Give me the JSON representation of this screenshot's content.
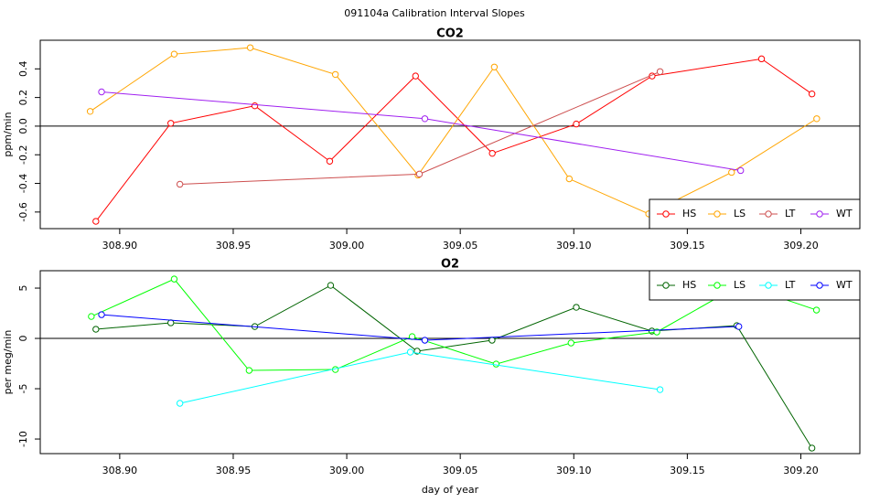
{
  "title": "091104a   Calibration Interval Slopes",
  "chart_data": [
    {
      "type": "line",
      "title": "CO2",
      "y_label": "ppm/min",
      "xlim": [
        308.865,
        309.226
      ],
      "ylim": [
        -0.716,
        0.6
      ],
      "xticks": [
        {
          "value": 308.9,
          "label": "308.90"
        },
        {
          "value": 308.95,
          "label": "308.95"
        },
        {
          "value": 309.0,
          "label": "309.00"
        },
        {
          "value": 309.05,
          "label": "309.05"
        },
        {
          "value": 309.1,
          "label": "309.10"
        },
        {
          "value": 309.15,
          "label": "309.15"
        },
        {
          "value": 309.2,
          "label": "309.20"
        }
      ],
      "yticks": [
        -0.6,
        -0.4,
        -0.2,
        {
          "value": 0,
          "label": "0.0"
        },
        0.2,
        0.4
      ],
      "hline": 0,
      "legend": "bottomright",
      "series": [
        {
          "name": "HS",
          "color": "#ff0000",
          "x": [
            308.8895,
            308.9225,
            308.9595,
            308.9925,
            309.0303,
            309.0641,
            309.1011,
            309.1345,
            309.1827,
            309.2049
          ],
          "values": [
            -0.665,
            0.02,
            0.142,
            -0.245,
            0.35,
            -0.19,
            0.015,
            0.35,
            0.47,
            0.225
          ]
        },
        {
          "name": "LS",
          "color": "#ffa500",
          "x": [
            308.887,
            308.924,
            308.9575,
            308.995,
            309.0314,
            309.065,
            309.098,
            309.133,
            309.1695,
            309.207
          ],
          "values": [
            0.103,
            0.503,
            0.548,
            0.361,
            -0.342,
            0.413,
            -0.368,
            -0.613,
            -0.323,
            0.052
          ]
        },
        {
          "name": "LT",
          "color": "#cd4f4f",
          "x": [
            308.9265,
            309.032,
            309.138
          ],
          "values": [
            -0.406,
            -0.335,
            0.381
          ]
        },
        {
          "name": "WT",
          "color": "#a020f0",
          "x": [
            308.892,
            309.0344,
            309.1735
          ],
          "values": [
            0.239,
            0.052,
            -0.31
          ]
        }
      ]
    },
    {
      "type": "line",
      "title": "O2",
      "y_label": "per meg/min",
      "x_label": "day of year",
      "xlim": [
        308.865,
        309.226
      ],
      "ylim": [
        -11.45,
        6.73
      ],
      "xticks": [
        {
          "value": 308.9,
          "label": "308.90"
        },
        {
          "value": 308.95,
          "label": "308.95"
        },
        {
          "value": 309.0,
          "label": "309.00"
        },
        {
          "value": 309.05,
          "label": "309.05"
        },
        {
          "value": 309.1,
          "label": "309.10"
        },
        {
          "value": 309.15,
          "label": "309.15"
        },
        {
          "value": 309.2,
          "label": "309.20"
        }
      ],
      "yticks": [
        -10,
        -5,
        0,
        5
      ],
      "hline": 0,
      "legend": "topright",
      "series": [
        {
          "name": "HS",
          "color": "#006400",
          "x": [
            308.8895,
            308.9225,
            308.9595,
            308.9929,
            309.031,
            309.064,
            309.1011,
            309.1344,
            309.1718,
            309.2049
          ],
          "values": [
            0.91,
            1.55,
            1.18,
            5.27,
            -1.27,
            -0.18,
            3.09,
            0.73,
            1.27,
            -10.9
          ]
        },
        {
          "name": "LS",
          "color": "#00ff00",
          "x": [
            308.8875,
            308.924,
            308.957,
            308.995,
            309.0288,
            309.0658,
            309.0988,
            309.1366,
            309.1735,
            309.2069
          ],
          "values": [
            2.18,
            5.9,
            -3.18,
            -3.09,
            0.18,
            -2.55,
            -0.45,
            0.64,
            5.36,
            2.82
          ]
        },
        {
          "name": "LT",
          "color": "#00ffff",
          "x": [
            308.9265,
            309.028,
            309.138
          ],
          "values": [
            -6.45,
            -1.36,
            -5.09
          ]
        },
        {
          "name": "WT",
          "color": "#0000ff",
          "x": [
            308.892,
            309.0344,
            309.1727
          ],
          "values": [
            2.36,
            -0.18,
            1.18
          ]
        }
      ]
    }
  ]
}
